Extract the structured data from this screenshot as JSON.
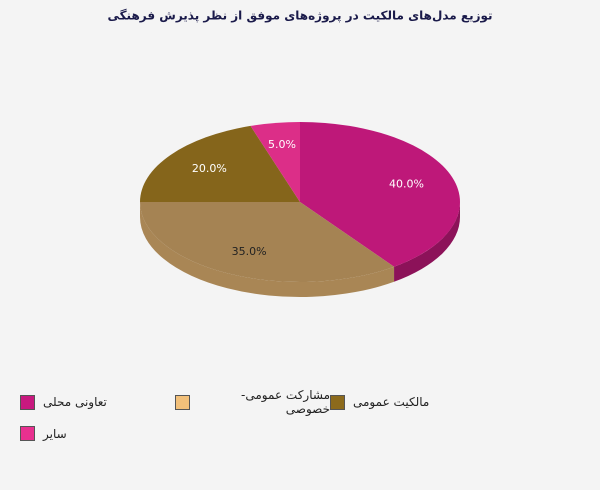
{
  "chart_data": {
    "type": "pie",
    "title": "توزیع مدل‌های مالکیت در پروژه‌های موفق از نظر پذیرش فرهنگی",
    "categories": [
      "تعاونی محلی",
      "مشارکت عمومی-خصوصی",
      "مالکیت عمومی",
      "سایر"
    ],
    "values": [
      40,
      35,
      20,
      5
    ],
    "value_labels": [
      "40.0%",
      "35.0%",
      "20.0%",
      "5.0%"
    ],
    "colors": [
      "#c8197f",
      "#f2c07a",
      "#8c6a1c",
      "#e8308f"
    ]
  }
}
